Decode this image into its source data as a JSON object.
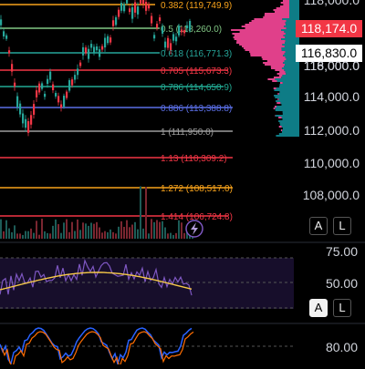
{
  "price_axis_labels": [
    "118,000.0",
    "116,000.0",
    "114,000.0",
    "112,000.0",
    "110,000.0",
    "108,000.0"
  ],
  "price_tags": [
    {
      "text": "118,174.0",
      "bg": "#f23645",
      "fg": "#ffffff"
    },
    {
      "text": "116,830.0",
      "bg": "#ffffff",
      "fg": "#000000"
    }
  ],
  "fib_levels": [
    {
      "ratio": "0.382",
      "price": "(119,749.9)",
      "label": "0.382 (119,749.9)",
      "color": "#f7a21b"
    },
    {
      "ratio": "0.5",
      "price": "(118,260.0)",
      "label": "0.5 (118,260.0)",
      "color": "#81c784"
    },
    {
      "ratio": "0.618",
      "price": "(116,771.3)",
      "label": "0.618 (116,771.3)",
      "color": "#26a69a"
    },
    {
      "ratio": "0.705",
      "price": "(115,673.3)",
      "label": "0.705 (115,673.3)",
      "color": "#f23645"
    },
    {
      "ratio": "0.786",
      "price": "(114,650.9)",
      "label": "0.786 (114,650.9)",
      "color": "#22ab94"
    },
    {
      "ratio": "0.886",
      "price": "(113,388.8)",
      "label": "0.886 (113,388.8)",
      "color": "#5b6fe6"
    },
    {
      "ratio": "1",
      "price": "(111,950.0)",
      "label": "1 (111,950.0)",
      "color": "#9e9e9e"
    },
    {
      "ratio": "1.13",
      "price": "(110,309.2)",
      "label": "1.13 (110,309.2)",
      "color": "#f23645"
    },
    {
      "ratio": "1.272",
      "price": "(108,517.0)",
      "label": "1.272 (108,517.0)",
      "color": "#f7a21b"
    },
    {
      "ratio": "1.414",
      "price": "(106,724.8)",
      "label": "1.414 (106,724.8)",
      "color": "#f23645"
    }
  ],
  "scale_buttons": {
    "auto": "A",
    "log": "L"
  },
  "flash_icon": "lightning-icon",
  "rsi_pane": {
    "labels": [
      "75.00",
      "50.00"
    ],
    "line_color": "#7e57c2",
    "ma_color": "#f7c948"
  },
  "stoch_pane": {
    "labels": [
      "80.00"
    ],
    "k_color": "#2962ff",
    "d_color": "#ff6d00"
  },
  "colors": {
    "up": "#26a69a",
    "down": "#f23645",
    "volume_profile_up": "#0e7c86",
    "volume_profile_down": "#e0408a"
  }
}
